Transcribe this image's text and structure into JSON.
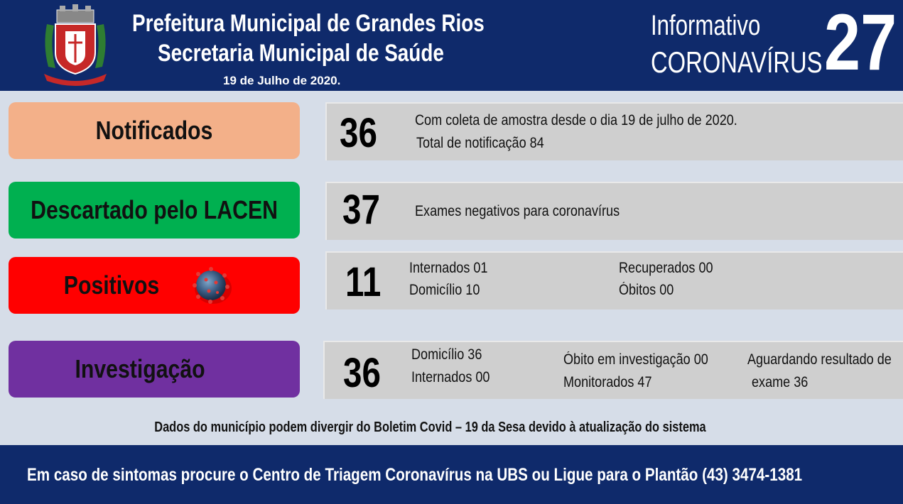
{
  "header": {
    "title": "Prefeitura Municipal de Grandes Rios",
    "subtitle": "Secretaria Municipal de Saúde",
    "date": "19 de Julho de 2020.",
    "info_line1": "Informativo",
    "info_line2": "CORONAVÍRUS",
    "number": "27"
  },
  "colors": {
    "header_bg": "#0f2a6b",
    "notificados": "#f3b089",
    "descartado": "#00b050",
    "positivos": "#ff0000",
    "investigacao": "#7030a0"
  },
  "rows": {
    "notificados": {
      "label": "Notificados",
      "value": "36",
      "line1": "Com coleta de amostra desde o dia 19 de julho de 2020.",
      "line2": "Total de notificação 84"
    },
    "descartado": {
      "label": "Descartado pelo LACEN",
      "value": "37",
      "line1": "Exames negativos para coronavírus"
    },
    "positivos": {
      "label": "Positivos",
      "icon": "virus-icon",
      "value": "11",
      "internados": "Internados 01",
      "domicilio": "Domicílio 10",
      "recuperados": "Recuperados 00",
      "obitos": "Óbitos 00"
    },
    "investigacao": {
      "label": "Investigação",
      "value": "36",
      "domicilio": "Domicílio 36",
      "internados": "Internados 00",
      "obito": "Óbito em investigação 00",
      "monitorados": "Monitorados 47",
      "aguardando1": "Aguardando resultado de",
      "aguardando2": "exame 36"
    }
  },
  "disclaimer": "Dados do município podem divergir do Boletim Covid – 19 da Sesa devido à atualização do sistema",
  "footer": "Em caso de sintomas procure o Centro de Triagem Coronavírus na UBS ou Ligue para o Plantão (43) 3474-1381"
}
